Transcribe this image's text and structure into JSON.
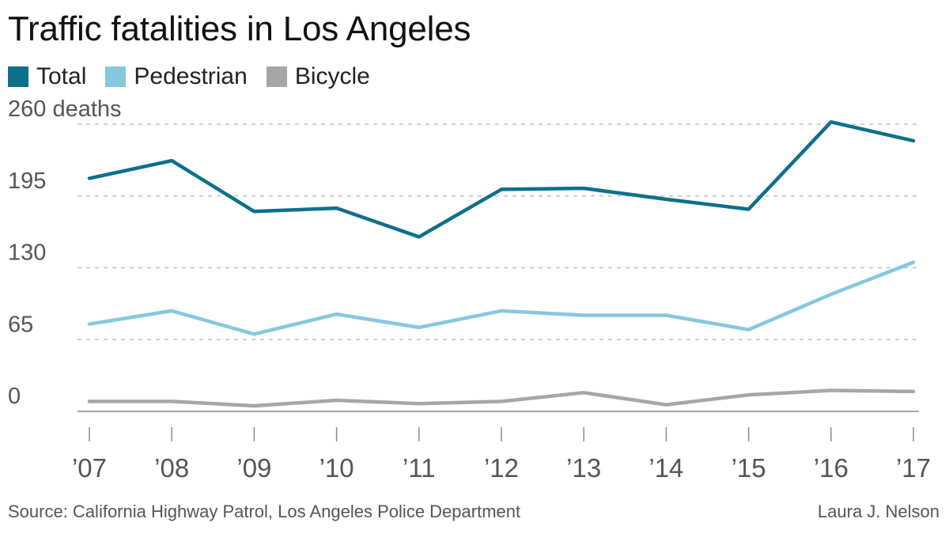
{
  "title": "Traffic fatalities in Los Angeles",
  "legend": [
    {
      "label": "Total",
      "color": "#0d6f8c"
    },
    {
      "label": "Pedestrian",
      "color": "#86c7e0"
    },
    {
      "label": "Bicycle",
      "color": "#a6a6a6"
    }
  ],
  "source": "Source: California Highway Patrol, Los Angeles Police Department",
  "credit": "Laura J. Nelson",
  "chart_data": {
    "type": "line",
    "x": [
      "’07",
      "’08",
      "’09",
      "’10",
      "’11",
      "’12",
      "’13",
      "’14",
      "’15",
      "’16",
      "’17"
    ],
    "ylim": [
      0,
      260
    ],
    "yticks": [
      0,
      65,
      130,
      195,
      260
    ],
    "ytick_labels": [
      "0",
      "65",
      "130",
      "195",
      "260 deaths"
    ],
    "grid": true,
    "legend_position": "top-left",
    "series": [
      {
        "name": "Total",
        "color": "#0d6f8c",
        "values": [
          211,
          227,
          181,
          184,
          158,
          201,
          202,
          192,
          183,
          262,
          245
        ]
      },
      {
        "name": "Pedestrian",
        "color": "#86c7e0",
        "values": [
          79,
          91,
          70,
          88,
          76,
          91,
          87,
          87,
          74,
          106,
          135
        ]
      },
      {
        "name": "Bicycle",
        "color": "#a6a6a6",
        "values": [
          9,
          9,
          5,
          10,
          7,
          9,
          17,
          6,
          15,
          19,
          18
        ]
      }
    ]
  }
}
